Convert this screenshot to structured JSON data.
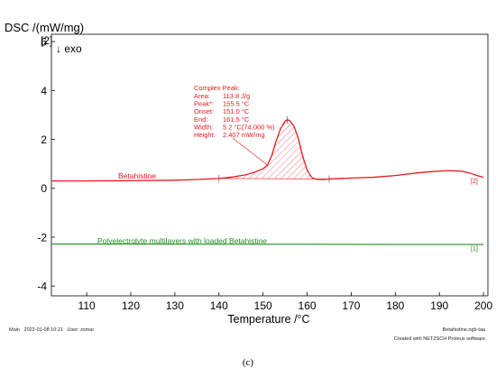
{
  "chart_data": {
    "type": "line",
    "title": "",
    "ylabel": "DSC /(mW/mg)",
    "ylabel_marker": "[2]",
    "ylabel_direction": "↓ exo",
    "xlabel": "Temperature /°C",
    "xlim": [
      102,
      201
    ],
    "ylim": [
      -4.4,
      6.3
    ],
    "x_ticks": [
      110,
      120,
      130,
      140,
      150,
      160,
      170,
      180,
      190,
      200
    ],
    "y_ticks": [
      -4,
      -2,
      0,
      2,
      4,
      6
    ],
    "grid": false,
    "series": [
      {
        "name": "Betahistine",
        "marker": "[2]",
        "color": "#e8191c",
        "x": [
          102,
          110,
          120,
          130,
          135,
          140,
          143,
          146,
          148,
          150,
          151,
          152,
          153,
          154,
          155,
          155.5,
          156,
          157,
          158,
          159,
          160,
          161,
          162,
          163,
          164,
          165,
          170,
          175,
          180,
          185,
          188,
          192,
          195,
          197,
          198.5,
          200
        ],
        "y": [
          0.3,
          0.3,
          0.31,
          0.33,
          0.36,
          0.4,
          0.46,
          0.55,
          0.65,
          0.8,
          0.95,
          1.35,
          1.95,
          2.45,
          2.75,
          2.8,
          2.78,
          2.55,
          2.05,
          1.3,
          0.75,
          0.45,
          0.37,
          0.36,
          0.36,
          0.38,
          0.42,
          0.45,
          0.52,
          0.63,
          0.68,
          0.72,
          0.7,
          0.62,
          0.52,
          0.45
        ]
      },
      {
        "name": "Polyelectrolyte multilayers with loaded Betahistine",
        "marker": "[1]",
        "color": "#228b22",
        "x": [
          102,
          120,
          140,
          160,
          180,
          200
        ],
        "y": [
          -2.28,
          -2.28,
          -2.29,
          -2.29,
          -2.3,
          -2.3
        ]
      }
    ],
    "complex_peak": {
      "title": "Complex Peak:",
      "rows": [
        {
          "label": "Area:",
          "value": "113.8 J/g"
        },
        {
          "label": "Peak*:",
          "value": "155.5 °C"
        },
        {
          "label": "Onset:",
          "value": "151.0 °C"
        },
        {
          "label": "End:",
          "value": "161.5 °C"
        },
        {
          "label": "Width:",
          "value": "5.2 °C(74.000 %)"
        },
        {
          "label": "Height:",
          "value": "2.407 mW/mg"
        }
      ],
      "integration_start": 140,
      "integration_end": 165,
      "peak_x": 155.5,
      "onset_x": 151.0
    }
  },
  "footer": {
    "left": "Main   2022-01-08 10:21   User: zsmar",
    "right": "Betahistine.ngb-taa",
    "credit": "Created with NETZSCH Proteus software"
  },
  "panel_label": "(c)"
}
